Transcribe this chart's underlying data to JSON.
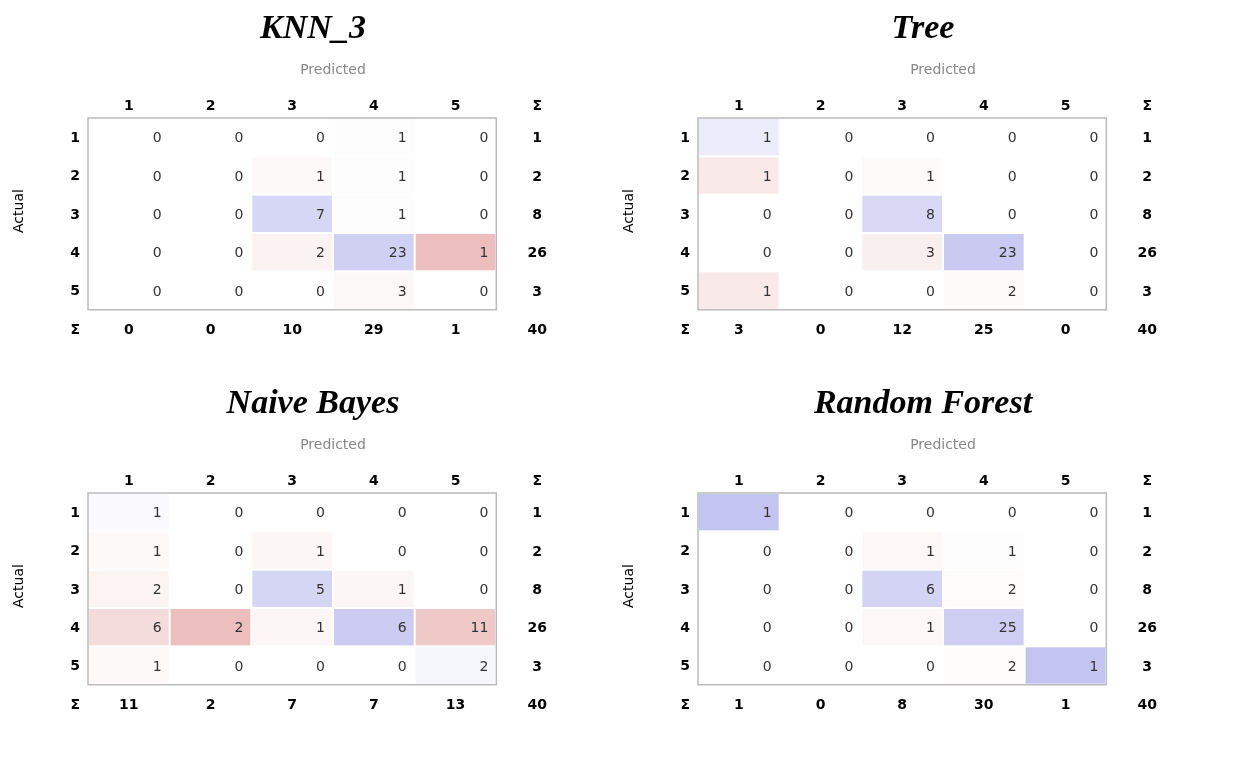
{
  "chart_data": [
    {
      "type": "heatmap",
      "data_labels": true,
      "title": "KNN_3",
      "xlabel": "Predicted",
      "ylabel": "Actual",
      "categories": [
        "1",
        "2",
        "3",
        "4",
        "5",
        "Σ"
      ],
      "y_categories": [
        "1",
        "2",
        "3",
        "4",
        "5",
        "Σ"
      ],
      "cells": [
        [
          0,
          0,
          0,
          1,
          0,
          1
        ],
        [
          0,
          0,
          1,
          1,
          0,
          2
        ],
        [
          0,
          0,
          7,
          1,
          0,
          8
        ],
        [
          0,
          0,
          2,
          23,
          1,
          26
        ],
        [
          0,
          0,
          0,
          3,
          0,
          3
        ],
        [
          0,
          0,
          10,
          29,
          1,
          40
        ]
      ]
    },
    {
      "type": "heatmap",
      "data_labels": true,
      "title": "Tree",
      "xlabel": "Predicted",
      "ylabel": "Actual",
      "categories": [
        "1",
        "2",
        "3",
        "4",
        "5",
        "Σ"
      ],
      "y_categories": [
        "1",
        "2",
        "3",
        "4",
        "5",
        "Σ"
      ],
      "cells": [
        [
          1,
          0,
          0,
          0,
          0,
          1
        ],
        [
          1,
          0,
          1,
          0,
          0,
          2
        ],
        [
          0,
          0,
          8,
          0,
          0,
          8
        ],
        [
          0,
          0,
          3,
          23,
          0,
          26
        ],
        [
          1,
          0,
          0,
          2,
          0,
          3
        ],
        [
          3,
          0,
          12,
          25,
          0,
          40
        ]
      ]
    },
    {
      "type": "heatmap",
      "data_labels": true,
      "title": "Naive Bayes",
      "xlabel": "Predicted",
      "ylabel": "Actual",
      "categories": [
        "1",
        "2",
        "3",
        "4",
        "5",
        "Σ"
      ],
      "y_categories": [
        "1",
        "2",
        "3",
        "4",
        "5",
        "Σ"
      ],
      "cells": [
        [
          1,
          0,
          0,
          0,
          0,
          1
        ],
        [
          1,
          0,
          1,
          0,
          0,
          2
        ],
        [
          2,
          0,
          5,
          1,
          0,
          8
        ],
        [
          6,
          2,
          1,
          6,
          11,
          26
        ],
        [
          1,
          0,
          0,
          0,
          2,
          3
        ],
        [
          11,
          2,
          7,
          7,
          13,
          40
        ]
      ]
    },
    {
      "type": "heatmap",
      "data_labels": true,
      "title": "Random Forest",
      "xlabel": "Predicted",
      "ylabel": "Actual",
      "categories": [
        "1",
        "2",
        "3",
        "4",
        "5",
        "Σ"
      ],
      "y_categories": [
        "1",
        "2",
        "3",
        "4",
        "5",
        "Σ"
      ],
      "cells": [
        [
          1,
          0,
          0,
          0,
          0,
          1
        ],
        [
          0,
          0,
          1,
          1,
          0,
          2
        ],
        [
          0,
          0,
          6,
          2,
          0,
          8
        ],
        [
          0,
          0,
          1,
          25,
          0,
          26
        ],
        [
          0,
          0,
          0,
          2,
          1,
          3
        ],
        [
          1,
          0,
          8,
          30,
          1,
          40
        ]
      ]
    }
  ]
}
